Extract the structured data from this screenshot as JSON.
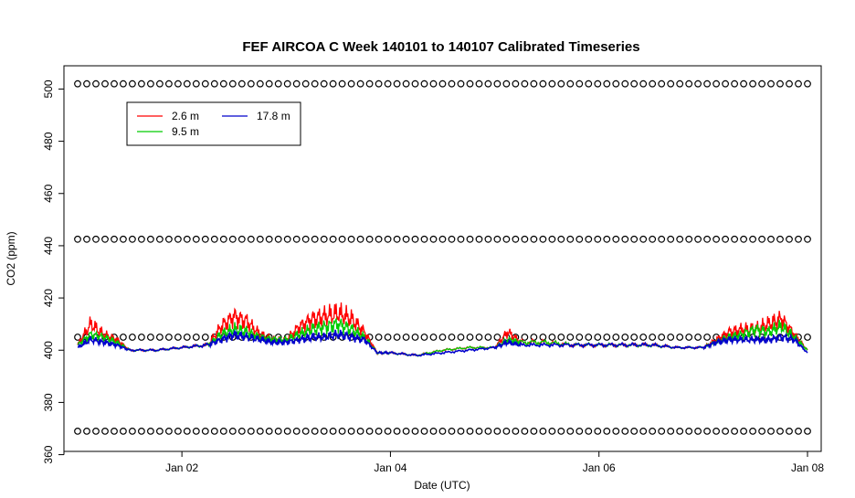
{
  "chart_data": {
    "type": "line",
    "title": "FEF AIRCOA C  Week 140101 to 140107  Calibrated Timeseries",
    "xlabel": "Date (UTC)",
    "ylabel": "CO2 (ppm)",
    "xlim": [
      "2014-01-01T00:00",
      "2014-01-08T00:00"
    ],
    "ylim": [
      360,
      505
    ],
    "x_ticks": [
      "Jan 02",
      "Jan 04",
      "Jan 06",
      "Jan 08"
    ],
    "y_ticks": [
      360,
      380,
      400,
      420,
      440,
      460,
      480,
      500
    ],
    "grid": false,
    "legend": {
      "placement": "top-left",
      "entries": [
        {
          "name": "2.6 m",
          "color": "#ff0000"
        },
        {
          "name": "9.5 m",
          "color": "#00cc00"
        },
        {
          "name": "17.8 m",
          "color": "#0000cc"
        }
      ]
    },
    "series": [
      {
        "name": "2.6 m",
        "color": "#ff0000",
        "x": [
          "2014-01-01T00:00",
          "2014-01-01T03:00",
          "2014-01-01T06:00",
          "2014-01-01T09:00",
          "2014-01-01T12:00",
          "2014-01-01T18:00",
          "2014-01-02T00:00",
          "2014-01-02T06:00",
          "2014-01-02T09:00",
          "2014-01-02T12:00",
          "2014-01-02T15:00",
          "2014-01-02T18:00",
          "2014-01-02T21:00",
          "2014-01-03T00:00",
          "2014-01-03T03:00",
          "2014-01-03T06:00",
          "2014-01-03T09:00",
          "2014-01-03T12:00",
          "2014-01-03T15:00",
          "2014-01-03T18:00",
          "2014-01-03T21:00",
          "2014-01-04T00:00",
          "2014-01-04T06:00",
          "2014-01-04T12:00",
          "2014-01-04T18:00",
          "2014-01-05T00:00",
          "2014-01-05T03:00",
          "2014-01-05T06:00",
          "2014-01-05T12:00",
          "2014-01-05T18:00",
          "2014-01-06T00:00",
          "2014-01-06T06:00",
          "2014-01-06T12:00",
          "2014-01-06T18:00",
          "2014-01-07T00:00",
          "2014-01-07T03:00",
          "2014-01-07T06:00",
          "2014-01-07T09:00",
          "2014-01-07T12:00",
          "2014-01-07T15:00",
          "2014-01-07T18:00",
          "2014-01-07T21:00",
          "2014-01-08T00:00"
        ],
        "y": [
          402,
          410,
          406,
          404,
          400,
          400,
          401,
          402,
          409,
          413,
          411,
          406,
          404,
          404,
          409,
          412,
          413,
          414,
          412,
          407,
          399,
          399,
          398,
          400,
          401,
          401,
          407,
          403,
          403,
          402,
          402,
          402,
          402,
          401,
          401,
          404,
          407,
          408,
          408,
          410,
          412,
          406,
          400
        ]
      },
      {
        "name": "9.5 m",
        "color": "#00cc00",
        "x": [
          "2014-01-01T00:00",
          "2014-01-01T03:00",
          "2014-01-01T06:00",
          "2014-01-01T09:00",
          "2014-01-01T12:00",
          "2014-01-01T18:00",
          "2014-01-02T00:00",
          "2014-01-02T06:00",
          "2014-01-02T09:00",
          "2014-01-02T12:00",
          "2014-01-02T15:00",
          "2014-01-02T18:00",
          "2014-01-02T21:00",
          "2014-01-03T00:00",
          "2014-01-03T03:00",
          "2014-01-03T06:00",
          "2014-01-03T09:00",
          "2014-01-03T12:00",
          "2014-01-03T15:00",
          "2014-01-03T18:00",
          "2014-01-03T21:00",
          "2014-01-04T00:00",
          "2014-01-04T06:00",
          "2014-01-04T12:00",
          "2014-01-04T18:00",
          "2014-01-05T00:00",
          "2014-01-05T03:00",
          "2014-01-05T06:00",
          "2014-01-05T12:00",
          "2014-01-05T18:00",
          "2014-01-06T00:00",
          "2014-01-06T06:00",
          "2014-01-06T12:00",
          "2014-01-06T18:00",
          "2014-01-07T00:00",
          "2014-01-07T03:00",
          "2014-01-07T06:00",
          "2014-01-07T09:00",
          "2014-01-07T12:00",
          "2014-01-07T15:00",
          "2014-01-07T18:00",
          "2014-01-07T21:00",
          "2014-01-08T00:00"
        ],
        "y": [
          402,
          406,
          405,
          403,
          400,
          400,
          401,
          402,
          406,
          408,
          407,
          405,
          404,
          404,
          406,
          408,
          409,
          410,
          408,
          405,
          399,
          399,
          398,
          400,
          401,
          401,
          404,
          403,
          403,
          402,
          402,
          402,
          402,
          401,
          401,
          403,
          405,
          406,
          408,
          407,
          409,
          405,
          400
        ]
      },
      {
        "name": "17.8 m",
        "color": "#0000cc",
        "x": [
          "2014-01-01T00:00",
          "2014-01-01T03:00",
          "2014-01-01T06:00",
          "2014-01-01T09:00",
          "2014-01-01T12:00",
          "2014-01-01T18:00",
          "2014-01-02T00:00",
          "2014-01-02T06:00",
          "2014-01-02T09:00",
          "2014-01-02T12:00",
          "2014-01-02T15:00",
          "2014-01-02T18:00",
          "2014-01-02T21:00",
          "2014-01-03T00:00",
          "2014-01-03T03:00",
          "2014-01-03T06:00",
          "2014-01-03T09:00",
          "2014-01-03T12:00",
          "2014-01-03T15:00",
          "2014-01-03T18:00",
          "2014-01-03T21:00",
          "2014-01-04T00:00",
          "2014-01-04T06:00",
          "2014-01-04T12:00",
          "2014-01-04T18:00",
          "2014-01-05T00:00",
          "2014-01-05T03:00",
          "2014-01-05T06:00",
          "2014-01-05T12:00",
          "2014-01-05T18:00",
          "2014-01-06T00:00",
          "2014-01-06T06:00",
          "2014-01-06T12:00",
          "2014-01-06T18:00",
          "2014-01-07T00:00",
          "2014-01-07T03:00",
          "2014-01-07T06:00",
          "2014-01-07T09:00",
          "2014-01-07T12:00",
          "2014-01-07T15:00",
          "2014-01-07T18:00",
          "2014-01-07T21:00",
          "2014-01-08T00:00"
        ],
        "y": [
          401,
          404,
          403,
          402,
          400,
          400,
          401,
          402,
          404,
          406,
          405,
          404,
          403,
          403,
          404,
          405,
          405,
          406,
          405,
          404,
          399,
          399,
          398,
          399,
          400,
          401,
          403,
          402,
          402,
          402,
          402,
          402,
          402,
          401,
          401,
          403,
          404,
          404,
          404,
          404,
          405,
          404,
          399
        ]
      },
      {
        "name": "",
        "color": "#000000",
        "marker": "circle",
        "x_range": [
          "2014-01-01T00:00",
          "2014-01-08T00:00"
        ],
        "y_levels": [
          369,
          405,
          442.5,
          502
        ]
      }
    ]
  }
}
